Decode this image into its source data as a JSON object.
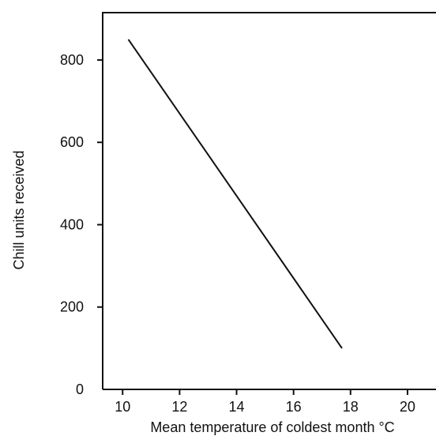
{
  "chart_data": {
    "type": "line",
    "title": "",
    "xlabel": "Mean temperature of coldest month °C",
    "ylabel": "Chill units received",
    "xlim": [
      9.3,
      21
    ],
    "ylim": [
      0,
      915
    ],
    "x_ticks": [
      10,
      12,
      14,
      16,
      18,
      20
    ],
    "x_tick_labels": [
      "10",
      "12",
      "14",
      "16",
      "18",
      "20"
    ],
    "y_ticks": [
      0,
      200,
      400,
      600,
      800
    ],
    "y_tick_labels": [
      "0",
      "200",
      "400",
      "600",
      "800"
    ],
    "grid": false,
    "legend": "none",
    "series": [
      {
        "x": [
          10.2,
          17.7
        ],
        "y": [
          850,
          100
        ]
      }
    ],
    "line_color": "#111111",
    "axis_color": "#111111"
  }
}
